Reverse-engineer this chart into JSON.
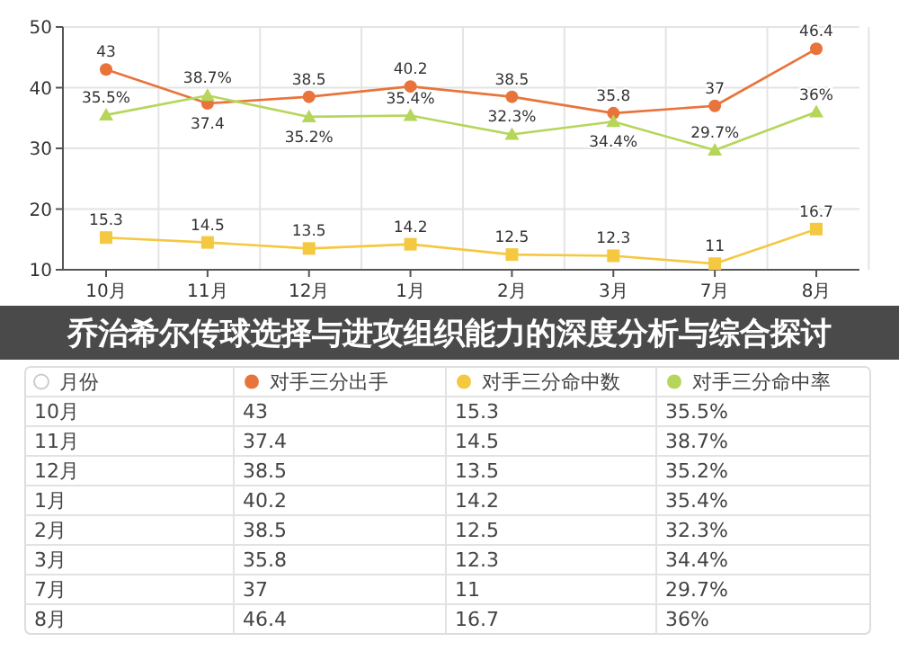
{
  "chart_data": {
    "type": "line",
    "title": "乔治希尔传球选择与进攻组织能力的深度分析与综合探讨",
    "categories": [
      "10月",
      "11月",
      "12月",
      "1月",
      "2月",
      "3月",
      "7月",
      "8月"
    ],
    "ylim": [
      10,
      50
    ],
    "yticks": [
      10,
      20,
      30,
      40,
      50
    ],
    "grid": true,
    "legend": "bottom",
    "data_labels": true,
    "legend_title": "月份",
    "series": [
      {
        "name": "对手三分出手",
        "color": "#e8743b",
        "marker": "circle",
        "values": [
          43,
          37.4,
          38.5,
          40.2,
          38.5,
          35.8,
          37,
          46.4
        ],
        "value_labels": [
          "43",
          "37.4",
          "38.5",
          "40.2",
          "38.5",
          "35.8",
          "37",
          "46.4"
        ]
      },
      {
        "name": "对手三分命中数",
        "color": "#f5c842",
        "marker": "square",
        "values": [
          15.3,
          14.5,
          13.5,
          14.2,
          12.5,
          12.3,
          11,
          16.7
        ],
        "value_labels": [
          "15.3",
          "14.5",
          "13.5",
          "14.2",
          "12.5",
          "12.3",
          "11",
          "16.7"
        ]
      },
      {
        "name": "对手三分命中率",
        "color": "#b5d65a",
        "marker": "triangle",
        "values": [
          35.5,
          38.7,
          35.2,
          35.4,
          32.3,
          34.4,
          29.7,
          36
        ],
        "value_labels": [
          "35.5%",
          "38.7%",
          "35.2%",
          "35.4%",
          "32.3%",
          "34.4%",
          "29.7%",
          "36%"
        ]
      }
    ]
  }
}
